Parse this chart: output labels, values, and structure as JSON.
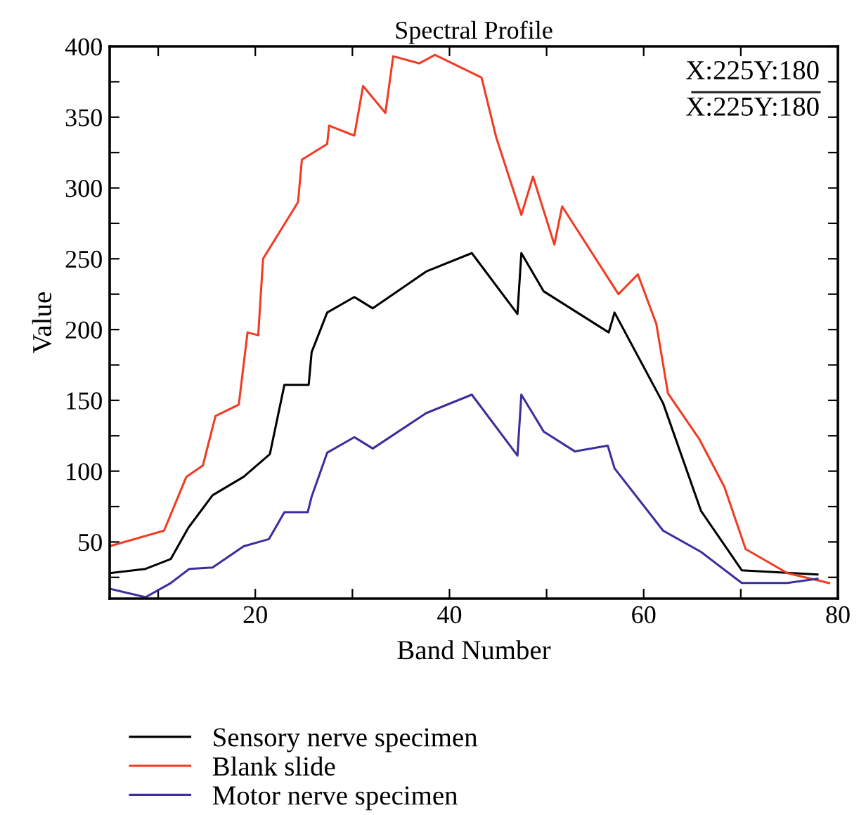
{
  "chart_data": {
    "type": "line",
    "title": "Spectral Profile",
    "xlabel": "Band Number",
    "ylabel": "Value",
    "annotations": [
      "X:225Y:180",
      "X:225Y:180"
    ],
    "xlim": [
      5,
      80
    ],
    "xticks": [
      {
        "value": 10,
        "label": null
      },
      20,
      {
        "value": 30,
        "label": null
      },
      40,
      {
        "value": 50,
        "label": null
      },
      60,
      {
        "value": 70,
        "label": null
      },
      80
    ],
    "ylim": [
      10,
      400
    ],
    "yticks": [
      {
        "value": 25,
        "label": null
      },
      50,
      {
        "value": 75,
        "label": null
      },
      100,
      {
        "value": 125,
        "label": null
      },
      150,
      {
        "value": 175,
        "label": null
      },
      200,
      {
        "value": 225,
        "label": null
      },
      250,
      {
        "value": 275,
        "label": null
      },
      300,
      {
        "value": 325,
        "label": null
      },
      350,
      {
        "value": 375,
        "label": null
      },
      400
    ],
    "grid": false,
    "legend": "bottom",
    "marker": "none",
    "line_style": "solid",
    "series": [
      {
        "name": "Sensory nerve specimen",
        "color": "#000000",
        "x": [
          5,
          8.7,
          11.3,
          13.1,
          15.6,
          18.8,
          21.5,
          23,
          25.5,
          25.8,
          27.4,
          30.2,
          32.1,
          37.6,
          42.3,
          47,
          47.4,
          49.7,
          56.4,
          57,
          62,
          65.9,
          70.1,
          77.9
        ],
        "values": [
          28,
          31,
          38,
          60,
          83,
          96,
          112,
          161,
          161,
          184,
          212,
          223,
          215,
          241,
          254,
          211,
          254,
          227,
          198,
          212,
          148,
          72,
          30,
          27
        ]
      },
      {
        "name": "Blank slide",
        "color": "#f03c24",
        "x": [
          5,
          10.6,
          12.9,
          14.6,
          15.9,
          18.3,
          19.2,
          20.3,
          20.8,
          24.4,
          24.8,
          27.4,
          27.6,
          30.2,
          31.1,
          33.4,
          34.2,
          36.9,
          38.5,
          43.3,
          44.8,
          47.4,
          48.6,
          50.8,
          51.6,
          57.4,
          59.4,
          61.3,
          62.5,
          65.7,
          68.3,
          70.5,
          74.8,
          79.1
        ],
        "values": [
          47,
          58,
          96,
          104,
          139,
          147,
          198,
          196,
          250,
          290,
          320,
          331,
          344,
          337,
          372,
          353,
          393,
          388,
          394,
          378,
          336,
          281,
          308,
          260,
          287,
          225,
          239,
          204,
          155,
          123,
          89,
          45,
          28,
          21
        ]
      },
      {
        "name": "Motor nerve specimen",
        "color": "#3a2f9c",
        "x": [
          5,
          8.7,
          11.3,
          13.2,
          15.6,
          18.8,
          21.4,
          23,
          25.4,
          25.8,
          27.4,
          30.2,
          32.1,
          37.6,
          42.3,
          47,
          47.4,
          49.7,
          52.9,
          56.3,
          57,
          62,
          65.9,
          70.1,
          74.8,
          77.9
        ],
        "values": [
          17,
          11,
          21,
          31,
          32,
          47,
          52,
          71,
          71,
          82,
          113,
          124,
          116,
          141,
          154,
          111,
          154,
          128,
          114,
          118,
          102,
          58,
          43,
          21,
          21,
          24
        ]
      }
    ]
  }
}
